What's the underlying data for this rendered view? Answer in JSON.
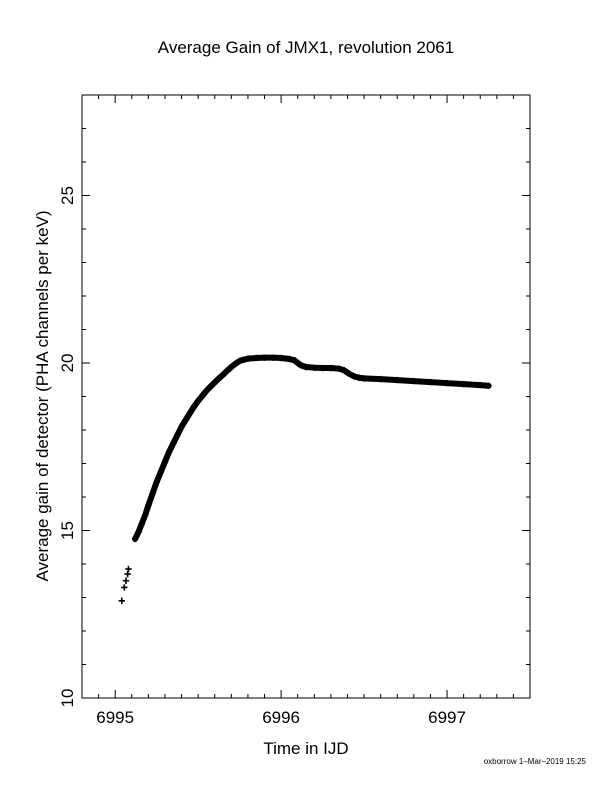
{
  "footer_text": "oxborrow  1–Mar–2019 15:25",
  "chart_data": {
    "type": "scatter",
    "marker": "plus",
    "title": "Average Gain of JMX1, revolution 2061",
    "xlabel": "Time in IJD",
    "ylabel": "Average gain of detector (PHA channels per keV)",
    "xlim": [
      6994.8,
      6997.5
    ],
    "ylim": [
      10,
      28
    ],
    "xticks": [
      6995,
      6996,
      6997
    ],
    "yticks": [
      10,
      15,
      20,
      25
    ],
    "x_tick_labels": [
      "6995",
      "6996",
      "6997"
    ],
    "y_tick_labels": [
      "10",
      "15",
      "20",
      "25"
    ],
    "grid": false,
    "color": "#000000",
    "points": [
      [
        6995.04,
        12.9
      ],
      [
        6995.055,
        13.3
      ],
      [
        6995.065,
        13.5
      ],
      [
        6995.075,
        13.7
      ],
      [
        6995.08,
        13.85
      ],
      [
        6995.12,
        14.75
      ],
      [
        6995.14,
        14.95
      ],
      [
        6995.16,
        15.2
      ],
      [
        6995.18,
        15.45
      ],
      [
        6995.2,
        15.75
      ],
      [
        6995.225,
        16.1
      ],
      [
        6995.25,
        16.45
      ],
      [
        6995.275,
        16.75
      ],
      [
        6995.3,
        17.05
      ],
      [
        6995.325,
        17.35
      ],
      [
        6995.35,
        17.6
      ],
      [
        6995.375,
        17.85
      ],
      [
        6995.4,
        18.1
      ],
      [
        6995.425,
        18.3
      ],
      [
        6995.45,
        18.5
      ],
      [
        6995.475,
        18.7
      ],
      [
        6995.5,
        18.87
      ],
      [
        6995.525,
        19.02
      ],
      [
        6995.55,
        19.17
      ],
      [
        6995.575,
        19.3
      ],
      [
        6995.6,
        19.42
      ],
      [
        6995.625,
        19.54
      ],
      [
        6995.65,
        19.65
      ],
      [
        6995.675,
        19.77
      ],
      [
        6995.7,
        19.88
      ],
      [
        6995.725,
        19.98
      ],
      [
        6995.75,
        20.06
      ],
      [
        6995.775,
        20.1
      ],
      [
        6995.8,
        20.13
      ],
      [
        6995.85,
        20.15
      ],
      [
        6995.9,
        20.16
      ],
      [
        6995.95,
        20.16
      ],
      [
        6996.0,
        20.15
      ],
      [
        6996.05,
        20.12
      ],
      [
        6996.08,
        20.08
      ],
      [
        6996.1,
        20.0
      ],
      [
        6996.12,
        19.93
      ],
      [
        6996.15,
        19.88
      ],
      [
        6996.2,
        19.86
      ],
      [
        6996.25,
        19.85
      ],
      [
        6996.3,
        19.85
      ],
      [
        6996.35,
        19.83
      ],
      [
        6996.38,
        19.78
      ],
      [
        6996.41,
        19.68
      ],
      [
        6996.44,
        19.6
      ],
      [
        6996.47,
        19.56
      ],
      [
        6996.5,
        19.54
      ],
      [
        6996.6,
        19.52
      ],
      [
        6996.7,
        19.49
      ],
      [
        6996.8,
        19.46
      ],
      [
        6996.9,
        19.43
      ],
      [
        6997.0,
        19.4
      ],
      [
        6997.1,
        19.37
      ],
      [
        6997.2,
        19.34
      ],
      [
        6997.25,
        19.32
      ]
    ]
  }
}
